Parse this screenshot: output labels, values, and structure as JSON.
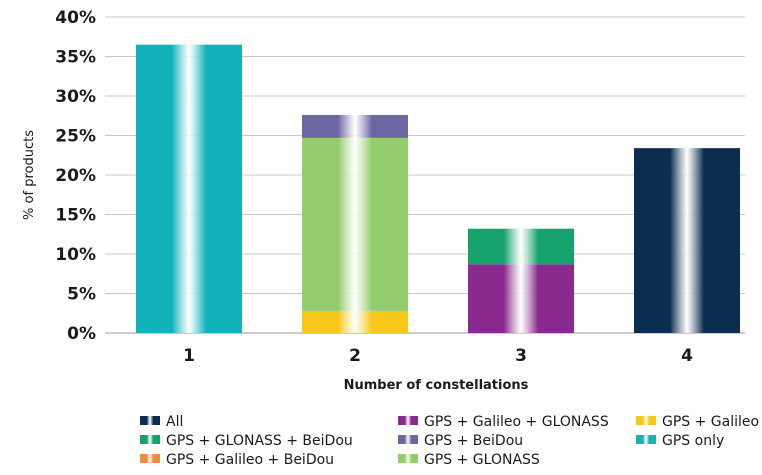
{
  "chart_data": {
    "type": "bar",
    "stacked": true,
    "title": "",
    "xlabel": "Number of constellations",
    "ylabel": "% of products",
    "categories": [
      "1",
      "2",
      "3",
      "4"
    ],
    "ylim": [
      0,
      40
    ],
    "yticks": [
      "0%",
      "5%",
      "10%",
      "15%",
      "20%",
      "25%",
      "30%",
      "35%",
      "40%"
    ],
    "grid": true,
    "legend_position": "bottom",
    "series": [
      {
        "name": "All",
        "color": "#0b2d50",
        "values": [
          0,
          0,
          0,
          23.4
        ]
      },
      {
        "name": "GPS + Galileo + GLONASS",
        "color": "#8a2a8e",
        "values": [
          0,
          0,
          8.7,
          0
        ]
      },
      {
        "name": "GPS + Galileo",
        "color": "#f7c719",
        "values": [
          0,
          2.8,
          0,
          0
        ]
      },
      {
        "name": "GPS + GLONASS + BeiDou",
        "color": "#16a46e",
        "values": [
          0,
          0,
          4.5,
          0
        ]
      },
      {
        "name": "GPS + BeiDou",
        "color": "#6b66a4",
        "values": [
          0,
          2.9,
          0,
          0
        ]
      },
      {
        "name": "GPS only",
        "color": "#12b2bb",
        "values": [
          36.5,
          0,
          0,
          0
        ]
      },
      {
        "name": "GPS + Galileo + BeiDou",
        "color": "#f28c3b",
        "values": [
          0,
          0,
          0,
          0
        ]
      },
      {
        "name": "GPS + GLONASS",
        "color": "#93cd6c",
        "values": [
          0,
          21.9,
          0,
          0
        ]
      }
    ],
    "stack_order": {
      "1": [
        "GPS only"
      ],
      "2": [
        "GPS + Galileo",
        "GPS + GLONASS",
        "GPS + BeiDou"
      ],
      "3": [
        "GPS + Galileo + GLONASS",
        "GPS + GLONASS + BeiDou"
      ],
      "4": [
        "All"
      ]
    }
  }
}
